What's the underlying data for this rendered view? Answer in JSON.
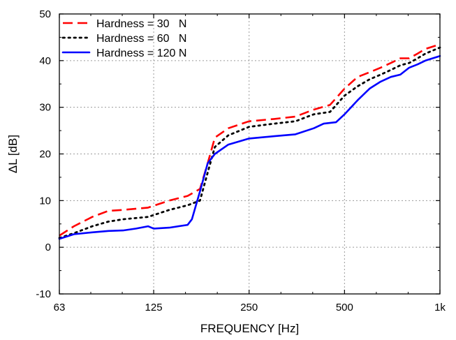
{
  "chart_data": {
    "type": "line",
    "xlabel": "FREQUENCY [Hz]",
    "ylabel": "ΔL [dB]",
    "x_scale": "log",
    "xlim": [
      63,
      1000
    ],
    "ylim": [
      -10,
      50
    ],
    "x_ticks": [
      {
        "value": 63,
        "label": "63"
      },
      {
        "value": 125,
        "label": "125"
      },
      {
        "value": 250,
        "label": "250"
      },
      {
        "value": 500,
        "label": "500"
      },
      {
        "value": 1000,
        "label": "1k"
      }
    ],
    "y_ticks": [
      {
        "value": -10,
        "label": "-10"
      },
      {
        "value": 0,
        "label": "0"
      },
      {
        "value": 10,
        "label": "10"
      },
      {
        "value": 20,
        "label": "20"
      },
      {
        "value": 30,
        "label": "30"
      },
      {
        "value": 40,
        "label": "40"
      },
      {
        "value": 50,
        "label": "50"
      }
    ],
    "grid": true,
    "legend_position": "top-left",
    "series": [
      {
        "name": "Hardness = 30   N",
        "color": "#ff0000",
        "dash": "dashed",
        "points": [
          [
            63,
            2.5
          ],
          [
            70,
            4.5
          ],
          [
            80,
            6.5
          ],
          [
            90,
            7.8
          ],
          [
            100,
            8.0
          ],
          [
            120,
            8.5
          ],
          [
            140,
            10.0
          ],
          [
            160,
            11.0
          ],
          [
            175,
            12.5
          ],
          [
            185,
            18
          ],
          [
            195,
            23.5
          ],
          [
            215,
            25.5
          ],
          [
            250,
            27
          ],
          [
            300,
            27.5
          ],
          [
            350,
            28
          ],
          [
            400,
            29.5
          ],
          [
            450,
            30.5
          ],
          [
            500,
            34
          ],
          [
            550,
            36.5
          ],
          [
            600,
            37.5
          ],
          [
            650,
            38.5
          ],
          [
            700,
            39.5
          ],
          [
            750,
            40.5
          ],
          [
            800,
            40.5
          ],
          [
            850,
            41.5
          ],
          [
            900,
            42.5
          ],
          [
            1000,
            43.5
          ]
        ]
      },
      {
        "name": "Hardness = 60   N",
        "color": "#000000",
        "dash": "dotted",
        "points": [
          [
            63,
            2.0
          ],
          [
            70,
            3.0
          ],
          [
            80,
            4.5
          ],
          [
            90,
            5.5
          ],
          [
            100,
            6.0
          ],
          [
            120,
            6.5
          ],
          [
            140,
            8.0
          ],
          [
            160,
            9.0
          ],
          [
            175,
            10.0
          ],
          [
            185,
            16
          ],
          [
            195,
            21.5
          ],
          [
            215,
            24.0
          ],
          [
            250,
            25.8
          ],
          [
            300,
            26.5
          ],
          [
            350,
            27
          ],
          [
            400,
            28.5
          ],
          [
            450,
            29
          ],
          [
            500,
            32.5
          ],
          [
            550,
            34.5
          ],
          [
            600,
            36
          ],
          [
            650,
            37
          ],
          [
            700,
            38
          ],
          [
            750,
            39
          ],
          [
            800,
            39.5
          ],
          [
            850,
            40.5
          ],
          [
            900,
            41.5
          ],
          [
            1000,
            42.8
          ]
        ]
      },
      {
        "name": "Hardness = 120 N",
        "color": "#0000ff",
        "dash": "solid",
        "points": [
          [
            63,
            1.8
          ],
          [
            70,
            2.8
          ],
          [
            80,
            3.2
          ],
          [
            90,
            3.5
          ],
          [
            100,
            3.6
          ],
          [
            110,
            4.0
          ],
          [
            120,
            4.5
          ],
          [
            125,
            4.0
          ],
          [
            140,
            4.2
          ],
          [
            160,
            4.8
          ],
          [
            165,
            6
          ],
          [
            175,
            12
          ],
          [
            185,
            18
          ],
          [
            195,
            20
          ],
          [
            215,
            22
          ],
          [
            250,
            23.3
          ],
          [
            300,
            23.8
          ],
          [
            350,
            24.2
          ],
          [
            400,
            25.5
          ],
          [
            430,
            26.5
          ],
          [
            470,
            26.8
          ],
          [
            500,
            28.5
          ],
          [
            550,
            31.5
          ],
          [
            600,
            34
          ],
          [
            650,
            35.5
          ],
          [
            700,
            36.5
          ],
          [
            750,
            37
          ],
          [
            800,
            38.5
          ],
          [
            850,
            39.2
          ],
          [
            900,
            40
          ],
          [
            1000,
            41
          ]
        ]
      }
    ]
  }
}
